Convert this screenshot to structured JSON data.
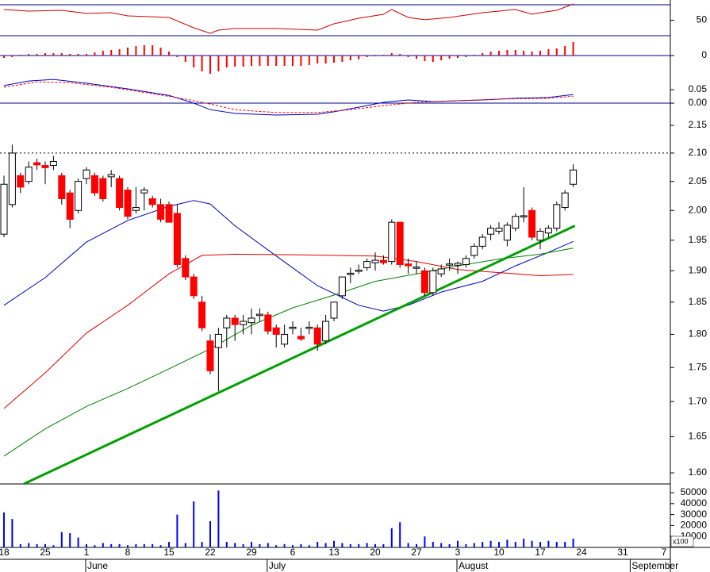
{
  "chart_data": [
    {
      "type": "line",
      "ylim": [
        30,
        76.2
      ],
      "yticks": [
        50
      ],
      "hlines": [
        70,
        30
      ],
      "hline_color": "#00008b",
      "series": [
        {
          "color": "#d00000",
          "x": [
            0,
            3,
            7,
            10,
            13,
            15,
            20,
            23,
            25,
            26,
            28,
            33,
            38,
            40,
            43,
            46,
            47,
            49,
            51,
            54,
            58,
            62,
            64,
            65,
            67,
            69
          ],
          "values": [
            63.9,
            61.8,
            62.9,
            58.8,
            59.8,
            55.7,
            53.6,
            40.3,
            33.1,
            37.2,
            39.3,
            39.3,
            37.2,
            45.4,
            52.6,
            57.7,
            63.9,
            53.6,
            50.6,
            53.6,
            59.8,
            63.9,
            57.7,
            59.8,
            62.9,
            71.1
          ]
        }
      ]
    },
    {
      "type": "bar",
      "ylim": [
        -25,
        25
      ],
      "yticks": [
        0
      ],
      "hlines": [
        0
      ],
      "hline_color": "#00008b",
      "color": "#ff0000",
      "values": [
        -3,
        -2,
        1,
        2,
        2,
        3,
        3,
        3,
        2,
        2,
        2,
        4,
        6,
        7,
        8,
        10,
        12,
        13,
        13,
        10,
        5,
        -2,
        -8,
        -15,
        -20,
        -23,
        -20,
        -15,
        -14,
        -14,
        -13,
        -13,
        -13,
        -13,
        -13,
        -13,
        -13,
        -12,
        -10,
        -10,
        -9,
        -8,
        -6,
        -5,
        -2,
        -1,
        1,
        3,
        2,
        -2,
        -4,
        -7,
        -8,
        -6,
        -4,
        -3,
        -2,
        1,
        3,
        5,
        6,
        7,
        7,
        6,
        5,
        6,
        8,
        9,
        12,
        17,
        null,
        null,
        null,
        null,
        null,
        null,
        null,
        null,
        null,
        null,
        null
      ]
    },
    {
      "type": "line",
      "ylim": [
        -0.044,
        0.103
      ],
      "yticks": [
        {
          "value": 0,
          "label": "0.00"
        },
        0.05
      ],
      "hlines": [
        0
      ],
      "hline_color": "#00008b",
      "series": [
        {
          "color": "#0000c0",
          "x": [
            0,
            3,
            6,
            10,
            15,
            20,
            23,
            25,
            28,
            33,
            38,
            40,
            43,
            46,
            49,
            52,
            55,
            58,
            62,
            66,
            69
          ],
          "values": [
            0.065,
            0.082,
            0.088,
            0.074,
            0.053,
            0.029,
            0,
            -0.024,
            -0.038,
            -0.044,
            -0.041,
            -0.032,
            -0.015,
            0.003,
            0.012,
            0.006,
            0.009,
            0.012,
            0.018,
            0.021,
            0.032
          ]
        },
        {
          "color": "#ff0000",
          "dash": true,
          "x": [
            0,
            4,
            8,
            13,
            18,
            22,
            25,
            28,
            33,
            38,
            42,
            46,
            50,
            55,
            60,
            66,
            69
          ],
          "values": [
            0.059,
            0.079,
            0.076,
            0.059,
            0.035,
            0.015,
            -0.003,
            -0.024,
            -0.035,
            -0.035,
            -0.024,
            -0.009,
            0.003,
            0.009,
            0.015,
            0.018,
            0.026
          ]
        }
      ]
    },
    {
      "type": "candlestick",
      "log": true,
      "ylim": [
        1.585,
        2.169
      ],
      "yticks": [
        {
          "value": 1.6,
          "label": "1.60"
        },
        1.65,
        {
          "value": 1.7,
          "label": "1.70"
        },
        1.75,
        {
          "value": 1.8,
          "label": "1.80"
        },
        1.85,
        {
          "value": 1.9,
          "label": "1.90"
        },
        1.95,
        {
          "value": 2.0,
          "label": "2.00"
        },
        2.05,
        {
          "value": 2.1,
          "label": "2.10"
        },
        2.15
      ],
      "hlines": [
        2.1
      ],
      "hline_color": "#000000",
      "hline_dash": true,
      "up_color": "#ffffff",
      "down_color": "#ff0000",
      "categories": [
        "18",
        null,
        null,
        null,
        null,
        "25",
        null,
        null,
        null,
        null,
        "1",
        null,
        null,
        null,
        null,
        "8",
        null,
        null,
        null,
        null,
        "15",
        null,
        null,
        null,
        null,
        "22",
        null,
        null,
        null,
        null,
        "29",
        null,
        null,
        null,
        null,
        "6",
        null,
        null,
        null,
        null,
        "13",
        null,
        null,
        null,
        null,
        "20",
        null,
        null,
        null,
        null,
        "27",
        null,
        null,
        null,
        null,
        "3",
        null,
        null,
        null,
        null,
        "10",
        null,
        null,
        null,
        null,
        "17",
        null,
        null,
        null,
        null,
        "24",
        null,
        null,
        null,
        null,
        "31",
        null,
        null,
        null,
        null,
        "7"
      ],
      "month_labels": [
        null,
        null,
        null,
        null,
        null,
        null,
        null,
        null,
        null,
        null,
        "June",
        null,
        null,
        null,
        null,
        null,
        null,
        null,
        null,
        null,
        null,
        null,
        null,
        null,
        null,
        null,
        null,
        null,
        null,
        null,
        null,
        null,
        "July",
        null,
        null,
        null,
        null,
        null,
        null,
        null,
        null,
        null,
        null,
        null,
        null,
        null,
        null,
        null,
        null,
        null,
        null,
        null,
        null,
        null,
        null,
        "August",
        null,
        null,
        null,
        null,
        null,
        null,
        null,
        null,
        null,
        null,
        null,
        null,
        null,
        null,
        null,
        null,
        null,
        null,
        null,
        null,
        "September",
        null,
        null,
        null,
        null
      ],
      "open": [
        1.96,
        2.01,
        2.06,
        2.05,
        2.083,
        2.078,
        2.078,
        2.06,
        2.03,
        2.0,
        2.055,
        2.06,
        2.055,
        2.058,
        2.055,
        2.035,
        2.0,
        2.03,
        2.02,
        2.01,
        2.01,
        1.995,
        1.92,
        1.89,
        1.85,
        1.79,
        1.78,
        1.81,
        1.825,
        1.815,
        1.818,
        1.829,
        1.83,
        1.81,
        1.785,
        1.809,
        1.797,
        1.809,
        1.81,
        1.79,
        1.825,
        1.86,
        1.894,
        1.899,
        1.905,
        1.913,
        1.917,
        1.915,
        1.98,
        1.911,
        1.904,
        1.9,
        1.865,
        1.895,
        1.909,
        1.909,
        1.91,
        1.925,
        1.94,
        1.96,
        1.965,
        1.95,
        1.97,
        1.989,
        2.0,
        1.95,
        1.962,
        1.97,
        2.005,
        2.045,
        null,
        null,
        null,
        null,
        null,
        null,
        null,
        null,
        null,
        null,
        null
      ],
      "high": [
        2.06,
        2.115,
        2.065,
        2.085,
        2.09,
        2.085,
        2.095,
        2.065,
        2.035,
        2.055,
        2.075,
        2.065,
        2.06,
        2.07,
        2.06,
        2.04,
        2.04,
        2.04,
        2.025,
        2.02,
        2.015,
        2.01,
        1.925,
        1.895,
        1.86,
        1.8,
        1.81,
        1.83,
        1.83,
        1.83,
        1.84,
        1.84,
        1.835,
        1.815,
        1.815,
        1.82,
        1.81,
        1.82,
        1.815,
        1.83,
        1.85,
        1.89,
        1.905,
        1.91,
        1.92,
        1.93,
        1.925,
        1.985,
        1.98,
        1.92,
        1.915,
        1.905,
        1.905,
        1.91,
        1.92,
        1.915,
        1.925,
        1.945,
        1.96,
        1.975,
        1.98,
        1.98,
        1.995,
        2.04,
        2.005,
        1.97,
        1.975,
        2.015,
        2.035,
        2.08,
        null,
        null,
        null,
        null,
        null,
        null,
        null,
        null,
        null,
        null,
        null
      ],
      "low": [
        1.955,
        2.005,
        2.03,
        2.045,
        2.07,
        2.045,
        2.07,
        2.01,
        1.97,
        1.995,
        2.045,
        2.025,
        2.015,
        2.04,
        2.0,
        1.985,
        1.995,
        2.0,
        2.005,
        1.98,
        1.98,
        1.905,
        1.885,
        1.855,
        1.805,
        1.74,
        1.715,
        1.78,
        1.79,
        1.8,
        1.8,
        1.82,
        1.8,
        1.78,
        1.78,
        1.8,
        1.79,
        1.8,
        1.775,
        1.785,
        1.82,
        1.855,
        1.88,
        1.895,
        1.9,
        1.9,
        1.91,
        1.91,
        1.905,
        1.895,
        1.895,
        1.86,
        1.86,
        1.89,
        1.9,
        1.895,
        1.905,
        1.92,
        1.935,
        1.95,
        1.96,
        1.94,
        1.965,
        1.98,
        1.95,
        1.935,
        1.955,
        1.965,
        2.0,
        2.04,
        null,
        null,
        null,
        null,
        null,
        null,
        null,
        null,
        null,
        null,
        null
      ],
      "close": [
        2.045,
        2.1,
        2.04,
        2.075,
        2.079,
        2.074,
        2.085,
        2.02,
        1.985,
        2.05,
        2.07,
        2.03,
        2.02,
        2.062,
        2.005,
        1.99,
        2.005,
        2.035,
        2.01,
        1.985,
        1.98,
        1.91,
        1.89,
        1.86,
        1.81,
        1.745,
        1.8,
        1.825,
        1.815,
        1.82,
        1.825,
        1.831,
        1.805,
        1.8,
        1.8,
        1.811,
        1.793,
        1.811,
        1.785,
        1.82,
        1.85,
        1.89,
        1.896,
        1.901,
        1.915,
        1.917,
        1.913,
        1.98,
        1.91,
        1.908,
        1.906,
        1.865,
        1.9,
        1.903,
        1.911,
        1.912,
        1.92,
        1.94,
        1.955,
        1.97,
        1.97,
        1.975,
        1.99,
        1.991,
        1.955,
        1.965,
        1.97,
        2.01,
        2.03,
        2.07,
        null,
        null,
        null,
        null,
        null,
        null,
        null,
        null,
        null,
        null,
        null
      ],
      "series": [
        {
          "color": "#0000c0",
          "x": [
            0,
            5,
            10,
            15,
            20,
            23,
            25,
            28,
            33,
            38,
            43,
            46,
            49,
            53,
            58,
            62,
            66,
            69
          ],
          "values": [
            1.845,
            1.889,
            1.947,
            1.983,
            2.007,
            2.017,
            2.011,
            1.974,
            1.924,
            1.876,
            1.845,
            1.836,
            1.845,
            1.866,
            1.883,
            1.908,
            1.93,
            1.948
          ]
        },
        {
          "color": "#e00000",
          "x": [
            0,
            5,
            10,
            15,
            20,
            24,
            28,
            35,
            45,
            50,
            55,
            60,
            65,
            69
          ],
          "values": [
            1.69,
            1.742,
            1.802,
            1.845,
            1.895,
            1.925,
            1.927,
            1.926,
            1.924,
            1.915,
            1.902,
            1.897,
            1.892,
            1.894
          ]
        },
        {
          "color": "#008000",
          "x": [
            0,
            5,
            10,
            15,
            20,
            25,
            30,
            35,
            40,
            45,
            50,
            55,
            60,
            65,
            69
          ],
          "values": [
            1.623,
            1.661,
            1.693,
            1.719,
            1.748,
            1.778,
            1.814,
            1.841,
            1.861,
            1.883,
            1.895,
            1.908,
            1.919,
            1.927,
            1.937
          ]
        }
      ],
      "trendline": {
        "color": "#00a000",
        "x": [
          2.4,
          69.2
        ],
        "values": [
          1.585,
          1.974
        ]
      }
    },
    {
      "type": "bar",
      "ylim": [
        0,
        58000
      ],
      "yticks": [
        10000,
        20000,
        30000,
        40000,
        50000
      ],
      "unit_label": "x100",
      "color": "#0000ff",
      "values": [
        32000,
        26000,
        3000,
        4000,
        3000,
        3000,
        2000,
        14000,
        13000,
        9000,
        3000,
        2000,
        4000,
        3000,
        3000,
        2000,
        3000,
        3000,
        3000,
        2000,
        5000,
        30000,
        4000,
        42000,
        5000,
        24000,
        52000,
        5000,
        4000,
        3000,
        5000,
        3000,
        4000,
        2000,
        3000,
        2000,
        3000,
        2000,
        5000,
        4000,
        6000,
        4000,
        3000,
        3000,
        4000,
        3000,
        3000,
        17500,
        23000,
        4000,
        3000,
        10000,
        5000,
        4000,
        3000,
        6000,
        3000,
        4000,
        5000,
        6000,
        5000,
        7000,
        5000,
        8000,
        6000,
        5000,
        6000,
        5000,
        5000,
        8000,
        null,
        null,
        null,
        null,
        null,
        null,
        null,
        null,
        null,
        null,
        null
      ]
    }
  ]
}
